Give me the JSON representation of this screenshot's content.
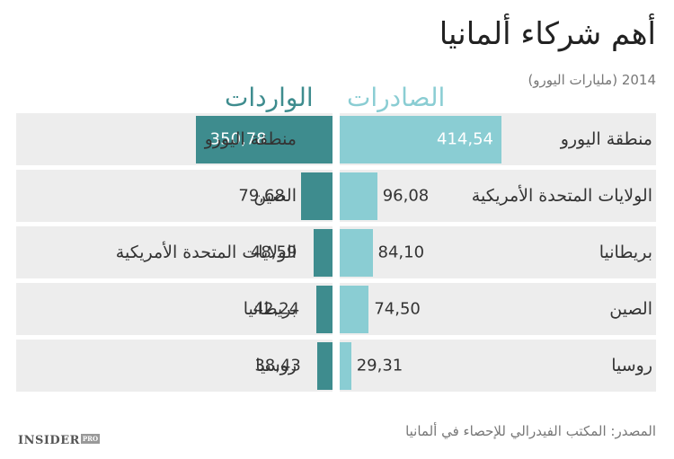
{
  "title": "أهم شركاء ألمانيا",
  "subtitle": "2014 (مليارات اليورو)",
  "legend": {
    "exports": "الصادرات",
    "imports": "الواردات"
  },
  "colors": {
    "exports": "#8acdd3",
    "imports": "#3e8c8e",
    "row_background": "#ededed"
  },
  "source": "المصدر: المكتب الفيدرالي للإحصاء في ألمانيا",
  "logo": {
    "main": "INSIDER",
    "badge": "PRO"
  },
  "chart_data": {
    "type": "bar",
    "orientation": "horizontal-butterfly",
    "title": "أهم شركاء ألمانيا",
    "subtitle": "2014 (مليارات اليورو)",
    "series": [
      {
        "name": "الصادرات",
        "categories": [
          "منطقة اليورو",
          "الولايات المتحدة الأمريكية",
          "بريطانيا",
          "الصين",
          "روسيا"
        ],
        "values": [
          414.54,
          96.08,
          84.1,
          74.5,
          29.31
        ],
        "labels": [
          "414,54",
          "96,08",
          "84,10",
          "74,50",
          "29,31"
        ]
      },
      {
        "name": "الواردات",
        "categories": [
          "منطقة اليورو",
          "الصين",
          "الولايات المتحدة الأمريكية",
          "بريطانيا",
          "روسيا"
        ],
        "values": [
          350.78,
          79.68,
          48.59,
          42.24,
          38.43
        ],
        "labels": [
          "350,78",
          "79,68",
          "48,59",
          "42,24",
          "38,43"
        ]
      }
    ]
  }
}
